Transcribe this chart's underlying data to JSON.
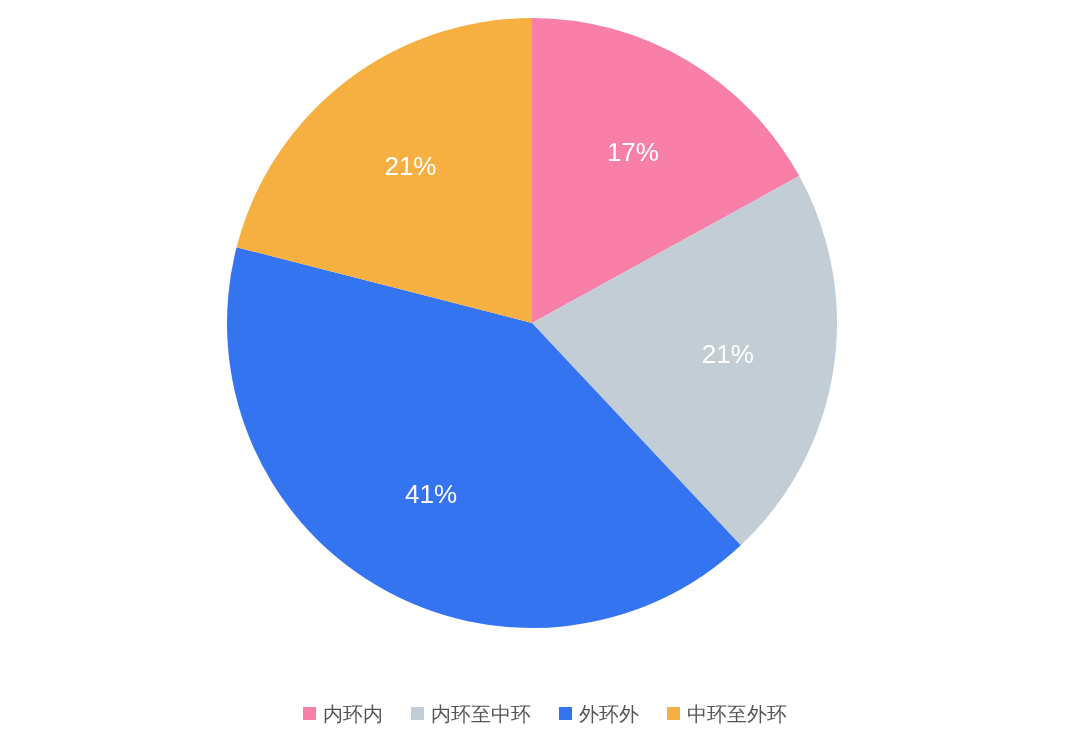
{
  "chart_data": {
    "type": "pie",
    "categories": [
      "内环内",
      "内环至中环",
      "外环外",
      "中环至外环"
    ],
    "values": [
      17,
      21,
      41,
      21
    ],
    "colors": [
      "#f77fa8",
      "#c2cdd6",
      "#3574f0",
      "#f6b042"
    ],
    "value_labels": [
      "17%",
      "21%",
      "41%",
      "21%"
    ],
    "legend": "bottom"
  }
}
